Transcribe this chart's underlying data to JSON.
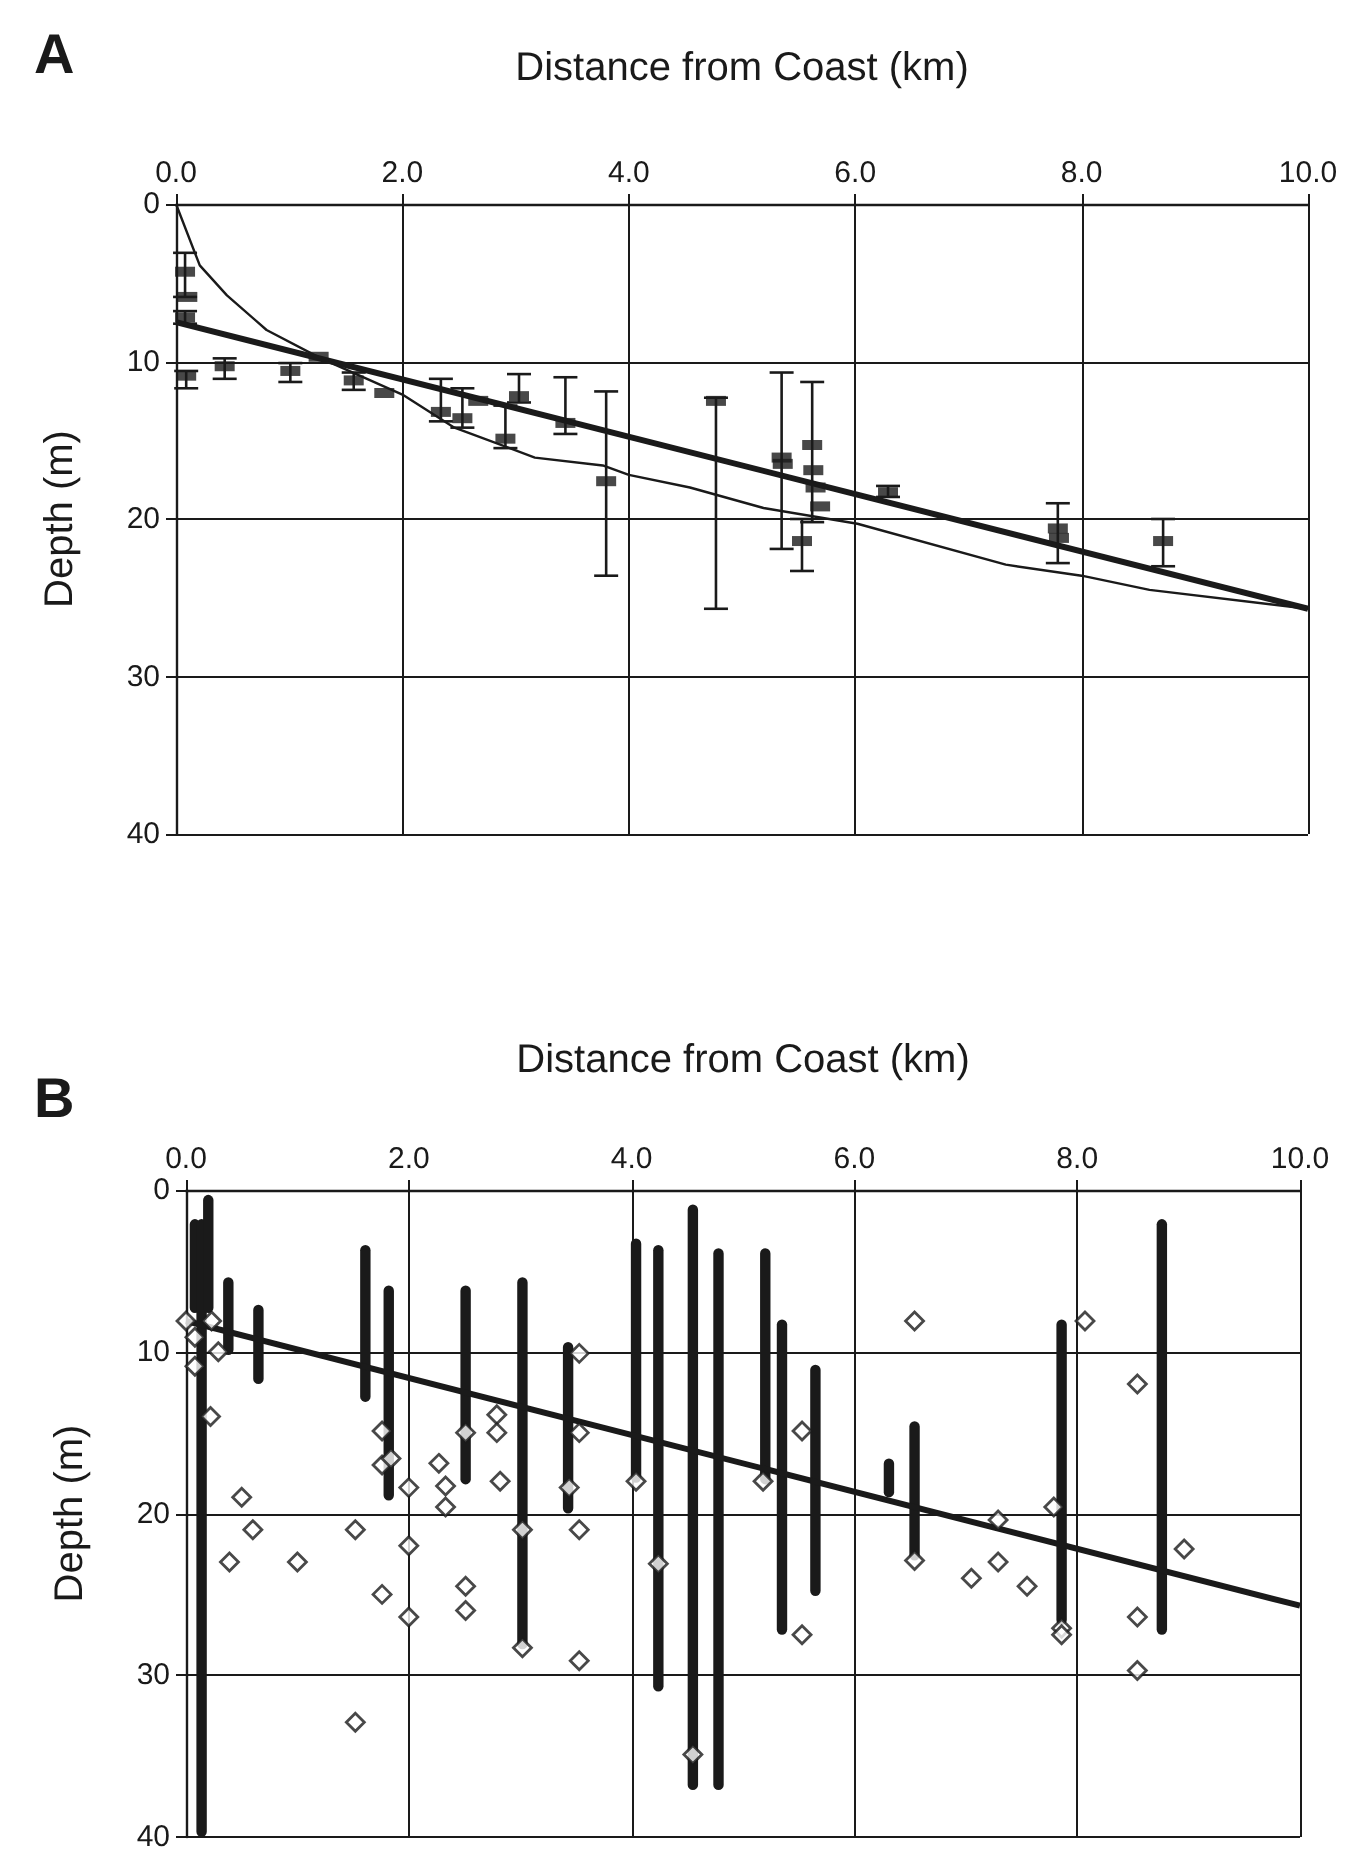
{
  "chart_data": [
    {
      "type": "scatter",
      "title": "A",
      "xlabel": "Distance from Coast (km)",
      "ylabel": "Depth (m)",
      "xlim": [
        0,
        10
      ],
      "ylim": [
        40,
        0
      ],
      "xticks": [
        {
          "value": 0,
          "label": "0.0"
        },
        {
          "value": 2,
          "label": "2.0"
        },
        {
          "value": 4,
          "label": "4.0"
        },
        {
          "value": 6,
          "label": "6.0"
        },
        {
          "value": 8,
          "label": "8.0"
        },
        {
          "value": 10,
          "label": "10.0"
        }
      ],
      "yticks": [
        0,
        10,
        20,
        30,
        40
      ],
      "grid": true,
      "series": [
        {
          "marker": "square",
          "color": "#1a1a1a",
          "x": [
            0.08,
            0.1,
            0.08,
            0.09,
            0.43,
            1.01,
            1.26,
            1.57,
            1.84,
            2.34,
            2.53,
            2.67,
            2.91,
            3.03,
            3.44,
            3.8,
            4.77,
            5.35,
            5.36,
            5.53,
            5.62,
            5.63,
            5.65,
            5.69,
            6.29,
            7.79,
            7.8,
            8.72
          ],
          "values": [
            4.3,
            5.9,
            7.2,
            10.9,
            10.3,
            10.6,
            9.7,
            11.2,
            12.0,
            13.2,
            13.6,
            12.5,
            14.9,
            12.2,
            13.9,
            17.6,
            12.5,
            16.1,
            16.5,
            21.4,
            15.3,
            16.9,
            18.0,
            19.2,
            18.3,
            20.6,
            21.2,
            21.4
          ],
          "errors": [
            [
              3.1,
              5.9
            ],
            null,
            [
              6.8,
              7.6
            ],
            [
              10.6,
              11.7
            ],
            [
              9.8,
              11.1
            ],
            [
              10.1,
              11.3
            ],
            null,
            [
              10.7,
              11.8
            ],
            null,
            [
              11.1,
              13.8
            ],
            [
              11.7,
              14.2
            ],
            null,
            [
              12.8,
              15.5
            ],
            [
              10.8,
              12.6
            ],
            [
              11.0,
              14.6
            ],
            [
              11.9,
              23.6
            ],
            [
              12.3,
              25.7
            ],
            [
              10.7,
              21.9
            ],
            null,
            [
              20.0,
              23.3
            ],
            [
              11.3,
              20.2
            ],
            null,
            null,
            null,
            [
              17.9,
              18.6
            ],
            [
              19.0,
              22.8
            ],
            null,
            [
              20.0,
              23.0
            ]
          ]
        },
        {
          "type": "line",
          "line_style": "solid",
          "marker": "none",
          "color": "#1a1a1a",
          "x": [
            0,
            0.21,
            0.45,
            0.8,
            1.28,
            2.0,
            2.46,
            3.17,
            3.77,
            4.0,
            4.54,
            5.19,
            6.02,
            7.33,
            8.0,
            8.6,
            10
          ],
          "values": [
            0,
            3.9,
            5.8,
            8.0,
            9.8,
            12.1,
            14.2,
            16.1,
            16.6,
            17.2,
            18.0,
            19.3,
            20.3,
            22.9,
            23.6,
            24.5,
            25.7
          ]
        },
        {
          "type": "line",
          "line_style": "solid",
          "marker": "none",
          "color": "#1a1a1a",
          "x": [
            0,
            10
          ],
          "values": [
            7.5,
            25.7
          ]
        }
      ]
    },
    {
      "type": "scatter",
      "title": "B",
      "xlabel": "Distance from Coast (km)",
      "ylabel": "Depth (m)",
      "xlim": [
        0,
        10
      ],
      "ylim": [
        40,
        0
      ],
      "xticks": [
        {
          "value": 0,
          "label": "0.0"
        },
        {
          "value": 2,
          "label": "2.0"
        },
        {
          "value": 4,
          "label": "4.0"
        },
        {
          "value": 6,
          "label": "6.0"
        },
        {
          "value": 8,
          "label": "8.0"
        },
        {
          "value": 10,
          "label": "10.0"
        }
      ],
      "yticks": [
        0,
        10,
        20,
        30,
        40
      ],
      "grid": true,
      "series": [
        {
          "type": "bar",
          "color": "#1a1a1a",
          "x": [
            0.08,
            0.14,
            0.2,
            0.38,
            0.65,
            1.61,
            1.82,
            2.51,
            3.02,
            3.43,
            4.04,
            4.24,
            4.55,
            4.78,
            5.2,
            5.35,
            5.65,
            6.31,
            6.54,
            7.86,
            8.76
          ],
          "base": [
            1.8,
            1.8,
            0.3,
            5.4,
            7.1,
            3.4,
            5.9,
            5.9,
            5.4,
            9.4,
            3.0,
            3.4,
            0.9,
            3.6,
            3.6,
            8.0,
            10.8,
            16.6,
            14.3,
            8.0,
            1.8
          ],
          "values": [
            5.8,
            38.2,
            7.3,
            4.8,
            4.9,
            9.7,
            13.3,
            12.3,
            23.0,
            10.6,
            15.1,
            27.6,
            36.2,
            33.5,
            14.6,
            19.5,
            14.3,
            2.4,
            8.6,
            18.9,
            25.7
          ]
        },
        {
          "marker": "diamond",
          "color": "#1a1a1a",
          "x": [
            0,
            0.08,
            0.23,
            0.08,
            0.29,
            0.22,
            0.5,
            0.6,
            0.39,
            1.0,
            1.52,
            1.52,
            1.76,
            1.76,
            1.84,
            1.76,
            2.0,
            2.0,
            2.0,
            2.27,
            2.33,
            2.33,
            2.51,
            2.51,
            2.51,
            2.79,
            2.79,
            2.82,
            3.02,
            3.02,
            3.44,
            3.53,
            3.53,
            3.53,
            3.53,
            4.04,
            4.24,
            4.55,
            5.18,
            5.53,
            5.53,
            6.54,
            6.54,
            7.05,
            7.29,
            7.29,
            7.55,
            7.79,
            7.86,
            7.86,
            8.07,
            8.54,
            8.54,
            8.54,
            8.96
          ],
          "values": [
            8.1,
            9.1,
            8.1,
            10.9,
            10.0,
            14.0,
            19.0,
            21.0,
            23.0,
            23.0,
            21.0,
            32.9,
            14.9,
            17.0,
            16.6,
            25.0,
            18.4,
            22.0,
            26.4,
            16.9,
            18.3,
            19.6,
            15.0,
            24.5,
            26.0,
            13.9,
            15.0,
            18.0,
            21.0,
            28.3,
            18.4,
            10.1,
            15.0,
            21.0,
            29.1,
            18.0,
            23.1,
            34.9,
            18.0,
            14.9,
            27.5,
            8.1,
            22.9,
            24.0,
            20.4,
            23.0,
            24.5,
            19.6,
            27.1,
            27.5,
            8.1,
            12.0,
            26.4,
            29.7,
            22.2
          ]
        },
        {
          "type": "line",
          "line_style": "solid",
          "marker": "none",
          "color": "#1a1a1a",
          "x": [
            0,
            10
          ],
          "values": [
            8.1,
            25.7
          ]
        }
      ]
    }
  ]
}
